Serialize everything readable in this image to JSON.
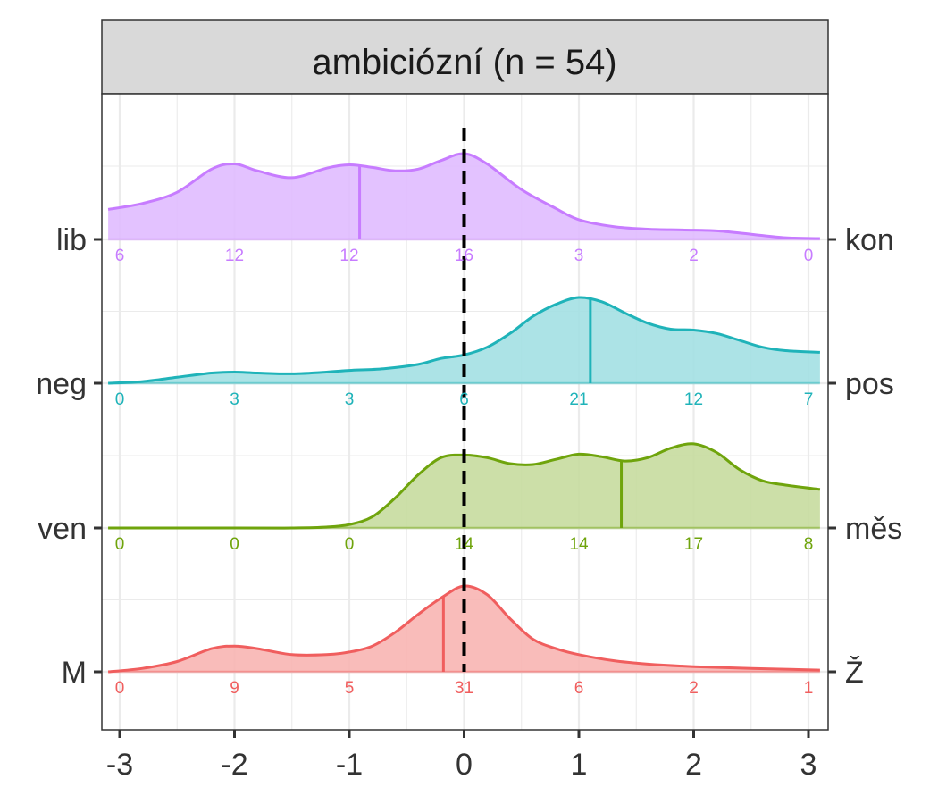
{
  "chart_data": {
    "type": "ridgeline",
    "title": "ambiciózní (n = 54)",
    "xlabel": "",
    "ylabel": "",
    "xlim": [
      -3.1,
      3.1
    ],
    "x_ticks": [
      "-3",
      "-2",
      "-1",
      "0",
      "1",
      "2",
      "3"
    ],
    "x_tick_values": [
      -3,
      -2,
      -1,
      0,
      1,
      2,
      3
    ],
    "grid": true,
    "reference_line": {
      "x": 0,
      "style": "dashed",
      "color": "#000000"
    },
    "rows": [
      {
        "left_label": "lib",
        "right_label": "kon",
        "color": "#C77CFF",
        "fill": "#E0BBFF",
        "counts": [
          "6",
          "12",
          "12",
          "16",
          "3",
          "2",
          "0"
        ],
        "mean": -0.91,
        "density": [
          [
            -3.1,
            0.35
          ],
          [
            -2.8,
            0.42
          ],
          [
            -2.5,
            0.55
          ],
          [
            -2.2,
            0.82
          ],
          [
            -2.0,
            0.88
          ],
          [
            -1.8,
            0.8
          ],
          [
            -1.5,
            0.72
          ],
          [
            -1.2,
            0.83
          ],
          [
            -1.0,
            0.87
          ],
          [
            -0.8,
            0.84
          ],
          [
            -0.6,
            0.8
          ],
          [
            -0.4,
            0.82
          ],
          [
            -0.2,
            0.92
          ],
          [
            0.0,
            1.0
          ],
          [
            0.2,
            0.88
          ],
          [
            0.5,
            0.58
          ],
          [
            0.8,
            0.36
          ],
          [
            1.0,
            0.23
          ],
          [
            1.3,
            0.15
          ],
          [
            1.6,
            0.12
          ],
          [
            1.9,
            0.11
          ],
          [
            2.2,
            0.1
          ],
          [
            2.5,
            0.06
          ],
          [
            2.8,
            0.02
          ],
          [
            3.1,
            0.01
          ]
        ]
      },
      {
        "left_label": "neg",
        "right_label": "pos",
        "color": "#1FB3B9",
        "fill": "#A3E0E3",
        "counts": [
          "0",
          "3",
          "3",
          "6",
          "21",
          "12",
          "7"
        ],
        "mean": 1.1,
        "density": [
          [
            -3.1,
            0.0
          ],
          [
            -2.8,
            0.02
          ],
          [
            -2.5,
            0.07
          ],
          [
            -2.2,
            0.12
          ],
          [
            -2.0,
            0.13
          ],
          [
            -1.8,
            0.12
          ],
          [
            -1.5,
            0.11
          ],
          [
            -1.2,
            0.13
          ],
          [
            -1.0,
            0.15
          ],
          [
            -0.7,
            0.17
          ],
          [
            -0.4,
            0.22
          ],
          [
            -0.2,
            0.29
          ],
          [
            0.0,
            0.33
          ],
          [
            0.2,
            0.42
          ],
          [
            0.4,
            0.58
          ],
          [
            0.6,
            0.78
          ],
          [
            0.8,
            0.92
          ],
          [
            1.0,
            1.0
          ],
          [
            1.2,
            0.95
          ],
          [
            1.4,
            0.82
          ],
          [
            1.6,
            0.7
          ],
          [
            1.8,
            0.63
          ],
          [
            2.0,
            0.62
          ],
          [
            2.2,
            0.58
          ],
          [
            2.4,
            0.5
          ],
          [
            2.6,
            0.42
          ],
          [
            2.8,
            0.38
          ],
          [
            3.1,
            0.36
          ]
        ]
      },
      {
        "left_label": "ven",
        "right_label": "měs",
        "color": "#6FA40C",
        "fill": "#C6DC9E",
        "counts": [
          "0",
          "0",
          "0",
          "14",
          "14",
          "17",
          "8"
        ],
        "mean": 1.37,
        "density": [
          [
            -3.1,
            0.0
          ],
          [
            -2.0,
            0.0
          ],
          [
            -1.5,
            0.0
          ],
          [
            -1.2,
            0.01
          ],
          [
            -1.0,
            0.04
          ],
          [
            -0.8,
            0.13
          ],
          [
            -0.6,
            0.35
          ],
          [
            -0.4,
            0.62
          ],
          [
            -0.2,
            0.82
          ],
          [
            0.0,
            0.85
          ],
          [
            0.2,
            0.82
          ],
          [
            0.4,
            0.75
          ],
          [
            0.6,
            0.74
          ],
          [
            0.8,
            0.8
          ],
          [
            1.0,
            0.86
          ],
          [
            1.2,
            0.83
          ],
          [
            1.4,
            0.78
          ],
          [
            1.6,
            0.82
          ],
          [
            1.8,
            0.93
          ],
          [
            2.0,
            0.98
          ],
          [
            2.2,
            0.88
          ],
          [
            2.4,
            0.68
          ],
          [
            2.6,
            0.55
          ],
          [
            2.8,
            0.5
          ],
          [
            3.1,
            0.45
          ]
        ]
      },
      {
        "left_label": "M",
        "right_label": "Ž",
        "color": "#F05E5E",
        "fill": "#F8B5B3",
        "counts": [
          "0",
          "9",
          "5",
          "31",
          "6",
          "2",
          "1"
        ],
        "mean": -0.18,
        "density": [
          [
            -3.1,
            0.0
          ],
          [
            -2.8,
            0.04
          ],
          [
            -2.5,
            0.12
          ],
          [
            -2.2,
            0.27
          ],
          [
            -2.0,
            0.3
          ],
          [
            -1.8,
            0.27
          ],
          [
            -1.5,
            0.2
          ],
          [
            -1.2,
            0.2
          ],
          [
            -1.0,
            0.23
          ],
          [
            -0.8,
            0.3
          ],
          [
            -0.6,
            0.46
          ],
          [
            -0.4,
            0.67
          ],
          [
            -0.2,
            0.86
          ],
          [
            0.0,
            1.0
          ],
          [
            0.2,
            0.9
          ],
          [
            0.4,
            0.62
          ],
          [
            0.6,
            0.38
          ],
          [
            0.8,
            0.27
          ],
          [
            1.0,
            0.2
          ],
          [
            1.3,
            0.13
          ],
          [
            1.6,
            0.09
          ],
          [
            2.0,
            0.06
          ],
          [
            2.5,
            0.04
          ],
          [
            3.1,
            0.02
          ]
        ]
      }
    ]
  }
}
